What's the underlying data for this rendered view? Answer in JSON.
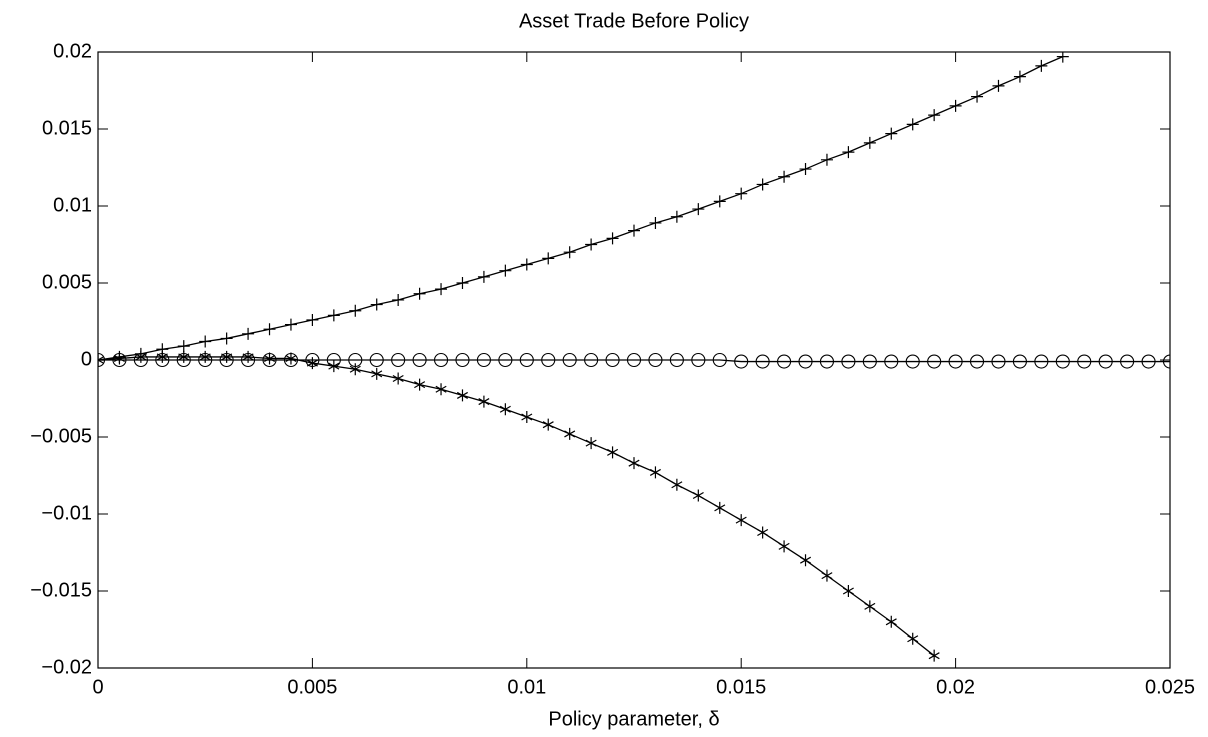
{
  "chart_data": {
    "type": "line",
    "title": "Asset Trade Before Policy",
    "x_label": "Policy parameter, δ",
    "x": [
      0,
      0.0005,
      0.001,
      0.0015,
      0.002,
      0.0025,
      0.003,
      0.0035,
      0.004,
      0.0045,
      0.005,
      0.0055,
      0.006,
      0.0065,
      0.007,
      0.0075,
      0.008,
      0.0085,
      0.009,
      0.0095,
      0.01,
      0.0105,
      0.011,
      0.0115,
      0.012,
      0.0125,
      0.013,
      0.0135,
      0.014,
      0.0145,
      0.015,
      0.0155,
      0.016,
      0.0165,
      0.017,
      0.0175,
      0.018,
      0.0185,
      0.019,
      0.0195,
      0.02,
      0.0205,
      0.021,
      0.0215,
      0.022,
      0.0225,
      0.023,
      0.0235,
      0.024,
      0.0245,
      0.025
    ],
    "series": [
      {
        "marker": "plus",
        "color": "#000000",
        "values": [
          0,
          0.0002,
          0.0004,
          0.0007,
          0.0009,
          0.0012,
          0.0014,
          0.0017,
          0.002,
          0.0023,
          0.0026,
          0.0029,
          0.0032,
          0.0036,
          0.0039,
          0.0043,
          0.0046,
          0.005,
          0.0054,
          0.0058,
          0.0062,
          0.0066,
          0.007,
          0.0075,
          0.0079,
          0.0084,
          0.0089,
          0.0093,
          0.0098,
          0.0103,
          0.0108,
          0.0114,
          0.0119,
          0.0124,
          0.013,
          0.0135,
          0.0141,
          0.0147,
          0.0153,
          0.0159,
          0.0165,
          0.0171,
          0.0178,
          0.0184,
          0.0191,
          0.0197,
          null,
          null,
          null,
          null,
          null
        ]
      },
      {
        "marker": "circle",
        "color": "#000000",
        "values": [
          0,
          0,
          0,
          0,
          0,
          0,
          0,
          0,
          0,
          0,
          0,
          0,
          0,
          0,
          0,
          0,
          0,
          0,
          0,
          0,
          0,
          0,
          0,
          0,
          0,
          0,
          0,
          0,
          0,
          0,
          -0.0001,
          -0.0001,
          -0.0001,
          -0.0001,
          -0.0001,
          -0.0001,
          -0.0001,
          -0.0001,
          -0.0001,
          -0.0001,
          -0.0001,
          -0.0001,
          -0.0001,
          -0.0001,
          -0.0001,
          -0.0001,
          -0.0001,
          -0.0001,
          -0.0001,
          -0.0001,
          -0.0001
        ]
      },
      {
        "marker": "star",
        "color": "#000000",
        "values": [
          0,
          0.0001,
          0.0002,
          0.0002,
          0.0002,
          0.0002,
          0.0002,
          0.0002,
          0.0001,
          0.0001,
          -0.0002,
          -0.0004,
          -0.0006,
          -0.0009,
          -0.0012,
          -0.0016,
          -0.0019,
          -0.0023,
          -0.0027,
          -0.0032,
          -0.0037,
          -0.0042,
          -0.0048,
          -0.0054,
          -0.006,
          -0.0067,
          -0.0073,
          -0.0081,
          -0.0088,
          -0.0096,
          -0.0104,
          -0.0112,
          -0.0121,
          -0.013,
          -0.014,
          -0.015,
          -0.016,
          -0.017,
          -0.0181,
          -0.0192,
          null,
          null,
          null,
          null,
          null,
          null,
          null,
          null,
          null,
          null,
          null
        ]
      }
    ],
    "xlim": [
      0,
      0.025
    ],
    "xticks": [
      0,
      0.005,
      0.01,
      0.015,
      0.02,
      0.025
    ],
    "ylim": [
      -0.02,
      0.02
    ],
    "yticks": [
      {
        "value": -0.02,
        "label": "−0.02"
      },
      {
        "value": -0.015,
        "label": "−0.015"
      },
      {
        "value": -0.01,
        "label": "−0.01"
      },
      {
        "value": -0.005,
        "label": "−0.005"
      },
      0,
      0.005,
      0.01,
      0.015,
      0.02
    ],
    "grid": false
  }
}
